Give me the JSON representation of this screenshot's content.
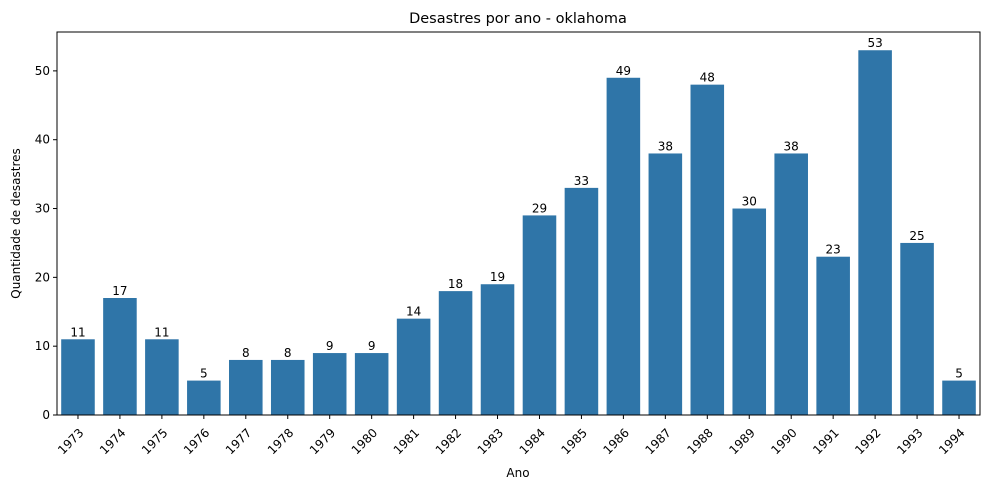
{
  "chart_data": {
    "type": "bar",
    "title": "Desastres por ano - oklahoma",
    "xlabel": "Ano",
    "ylabel": "Quantidade de desastres",
    "categories": [
      "1973",
      "1974",
      "1975",
      "1976",
      "1977",
      "1978",
      "1979",
      "1980",
      "1981",
      "1982",
      "1983",
      "1984",
      "1985",
      "1986",
      "1987",
      "1988",
      "1989",
      "1990",
      "1991",
      "1992",
      "1993",
      "1994"
    ],
    "values": [
      11,
      17,
      11,
      5,
      8,
      8,
      9,
      9,
      14,
      18,
      19,
      29,
      33,
      49,
      38,
      48,
      30,
      38,
      23,
      53,
      25,
      5
    ],
    "ylim": [
      0,
      55.65
    ],
    "yticks": [
      0,
      10,
      20,
      30,
      40,
      50
    ],
    "bar_color": "#2f75a8",
    "grid": false,
    "legend": "none",
    "data_labels": true
  }
}
